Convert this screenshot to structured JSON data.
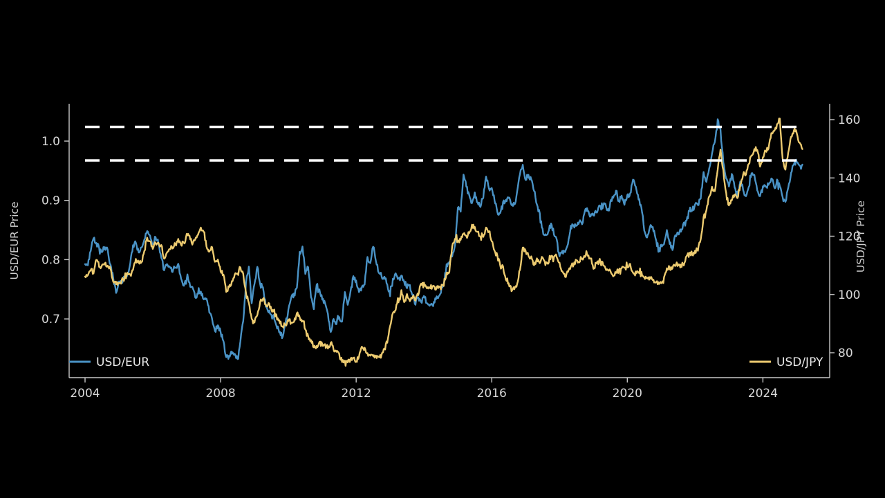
{
  "figure": {
    "background": "#000000",
    "spine_color": "#c8c8c8",
    "tick_label_color": "#d9d9d9",
    "axis_title_color": "#cfcfcf",
    "legend_text_color": "#e9e9e9"
  },
  "chart_data": {
    "type": "line",
    "title": "",
    "x_axis": {
      "label": "",
      "ticks": [
        2004,
        2008,
        2012,
        2016,
        2020,
        2024
      ],
      "tick_labels": [
        "2004",
        "2008",
        "2012",
        "2016",
        "2020",
        "2024"
      ],
      "range": [
        2003.5,
        2026.0
      ]
    },
    "y_axis_left": {
      "label": "USD/EUR Price",
      "ticks": [
        0.7,
        0.8,
        0.9,
        1.0
      ],
      "tick_labels": [
        "0.7",
        "0.8",
        "0.9",
        "1.0"
      ],
      "range": [
        0.6,
        1.06
      ]
    },
    "y_axis_right": {
      "label": "USD/JPY Price",
      "ticks": [
        80,
        100,
        120,
        140,
        160
      ],
      "tick_labels": [
        "80",
        "100",
        "120",
        "140",
        "160"
      ],
      "range": [
        71.5,
        165.5
      ]
    },
    "reference_lines": [
      {
        "axis": "right",
        "value": 157.5,
        "style": "dashed",
        "color": "#ffffff"
      },
      {
        "axis": "right",
        "value": 146.0,
        "style": "dashed",
        "color": "#ffffff"
      }
    ],
    "legend": [
      {
        "label": "USD/EUR",
        "position": "lower-left",
        "color": "#4A93C6"
      },
      {
        "label": "USD/JPY",
        "position": "lower-right",
        "color": "#EDCB70"
      }
    ],
    "series": [
      {
        "name": "USD/EUR",
        "axis": "left",
        "color": "#4A93C6",
        "start_year": 2004.0,
        "interval_years": 0.08333,
        "values": [
          0.792,
          0.79,
          0.816,
          0.838,
          0.828,
          0.82,
          0.814,
          0.822,
          0.815,
          0.792,
          0.768,
          0.742,
          0.764,
          0.76,
          0.772,
          0.775,
          0.793,
          0.825,
          0.828,
          0.813,
          0.822,
          0.833,
          0.848,
          0.842,
          0.826,
          0.838,
          0.828,
          0.803,
          0.782,
          0.791,
          0.786,
          0.781,
          0.788,
          0.792,
          0.768,
          0.757,
          0.769,
          0.76,
          0.752,
          0.738,
          0.742,
          0.746,
          0.731,
          0.734,
          0.712,
          0.698,
          0.679,
          0.688,
          0.678,
          0.662,
          0.636,
          0.637,
          0.643,
          0.641,
          0.634,
          0.662,
          0.697,
          0.762,
          0.788,
          0.726,
          0.757,
          0.789,
          0.757,
          0.753,
          0.722,
          0.713,
          0.706,
          0.699,
          0.686,
          0.676,
          0.67,
          0.692,
          0.716,
          0.734,
          0.741,
          0.751,
          0.812,
          0.82,
          0.777,
          0.788,
          0.736,
          0.718,
          0.757,
          0.752,
          0.733,
          0.726,
          0.708,
          0.676,
          0.699,
          0.692,
          0.701,
          0.696,
          0.746,
          0.722,
          0.746,
          0.773,
          0.764,
          0.746,
          0.752,
          0.757,
          0.806,
          0.792,
          0.823,
          0.798,
          0.778,
          0.772,
          0.771,
          0.757,
          0.74,
          0.766,
          0.779,
          0.766,
          0.771,
          0.764,
          0.754,
          0.756,
          0.741,
          0.726,
          0.737,
          0.728,
          0.74,
          0.726,
          0.724,
          0.722,
          0.733,
          0.736,
          0.746,
          0.761,
          0.791,
          0.796,
          0.806,
          0.824,
          0.886,
          0.883,
          0.945,
          0.924,
          0.908,
          0.894,
          0.912,
          0.895,
          0.891,
          0.906,
          0.941,
          0.919,
          0.921,
          0.901,
          0.881,
          0.878,
          0.896,
          0.901,
          0.904,
          0.894,
          0.891,
          0.913,
          0.944,
          0.959,
          0.936,
          0.942,
          0.934,
          0.917,
          0.891,
          0.877,
          0.851,
          0.841,
          0.846,
          0.861,
          0.844,
          0.836,
          0.806,
          0.813,
          0.812,
          0.828,
          0.856,
          0.858,
          0.856,
          0.863,
          0.861,
          0.882,
          0.884,
          0.874,
          0.874,
          0.881,
          0.889,
          0.894,
          0.896,
          0.881,
          0.897,
          0.906,
          0.916,
          0.898,
          0.907,
          0.894,
          0.907,
          0.912,
          0.934,
          0.922,
          0.901,
          0.889,
          0.849,
          0.839,
          0.854,
          0.856,
          0.837,
          0.814,
          0.824,
          0.828,
          0.851,
          0.828,
          0.818,
          0.842,
          0.845,
          0.848,
          0.862,
          0.864,
          0.884,
          0.884,
          0.892,
          0.891,
          0.905,
          0.947,
          0.933,
          0.956,
          0.98,
          0.998,
          1.035,
          1.018,
          0.963,
          0.938,
          0.922,
          0.944,
          0.923,
          0.908,
          0.931,
          0.918,
          0.906,
          0.922,
          0.946,
          0.944,
          0.916,
          0.906,
          0.922,
          0.924,
          0.925,
          0.935,
          0.922,
          0.933,
          0.922,
          0.904,
          0.898,
          0.921,
          0.948,
          0.961,
          0.966,
          0.958,
          0.962
        ]
      },
      {
        "name": "USD/JPY",
        "axis": "right",
        "color": "#EDCB70",
        "start_year": 2004.0,
        "interval_years": 0.08333,
        "values": [
          106.4,
          106.6,
          108.6,
          107.5,
          112.2,
          109.4,
          110.2,
          110.3,
          110.1,
          108.9,
          104.6,
          103.8,
          103.4,
          104.9,
          105.3,
          107.3,
          106.6,
          108.7,
          111.9,
          110.7,
          111.1,
          114.9,
          119.2,
          118.4,
          115.5,
          117.9,
          117.3,
          117.1,
          111.9,
          114.6,
          115.7,
          116.0,
          117.2,
          118.7,
          117.4,
          117.3,
          120.4,
          120.5,
          117.3,
          118.9,
          120.8,
          122.7,
          121.7,
          116.8,
          115.1,
          115.9,
          111.3,
          112.4,
          107.7,
          107.2,
          100.9,
          102.6,
          104.2,
          107.0,
          106.9,
          109.4,
          106.8,
          100.2,
          96.9,
          91.3,
          90.4,
          92.6,
          97.9,
          98.9,
          96.5,
          96.7,
          94.6,
          94.9,
          91.5,
          90.4,
          89.2,
          89.6,
          91.2,
          90.4,
          90.7,
          93.5,
          91.9,
          91.0,
          87.6,
          85.5,
          84.5,
          81.9,
          82.5,
          83.4,
          82.7,
          82.6,
          81.8,
          83.4,
          81.3,
          80.6,
          79.5,
          77.2,
          76.9,
          76.8,
          77.6,
          77.9,
          76.9,
          78.6,
          82.5,
          81.5,
          79.8,
          79.4,
          79.1,
          78.8,
          78.3,
          79.0,
          81.1,
          83.7,
          89.3,
          93.2,
          94.9,
          97.7,
          101.1,
          97.4,
          99.8,
          97.9,
          99.3,
          97.9,
          100.1,
          103.6,
          104.0,
          102.2,
          102.4,
          102.6,
          101.9,
          102.2,
          101.9,
          103.0,
          107.3,
          108.1,
          116.3,
          119.5,
          118.4,
          118.7,
          120.5,
          119.7,
          121.1,
          123.8,
          123.3,
          121.5,
          120.3,
          120.1,
          122.7,
          121.9,
          118.3,
          115.1,
          113.1,
          109.8,
          109.3,
          105.5,
          104.2,
          101.4,
          101.8,
          103.9,
          108.4,
          116.4,
          114.8,
          113.0,
          113.1,
          110.2,
          112.3,
          111.0,
          112.6,
          110.0,
          110.8,
          113.0,
          113.0,
          113.0,
          110.8,
          108.0,
          106.1,
          107.6,
          109.8,
          110.1,
          111.5,
          111.2,
          112.0,
          112.9,
          113.5,
          112.5,
          109.1,
          110.5,
          111.3,
          111.7,
          109.9,
          108.2,
          108.3,
          106.4,
          107.5,
          108.2,
          109.0,
          109.1,
          109.4,
          110.1,
          107.8,
          107.9,
          107.3,
          107.7,
          106.1,
          106.1,
          105.7,
          105.0,
          104.4,
          103.9,
          103.9,
          105.5,
          108.9,
          109.2,
          109.3,
          110.2,
          110.4,
          109.9,
          110.3,
          113.2,
          114.1,
          114.0,
          114.9,
          115.3,
          118.8,
          126.4,
          128.8,
          134.0,
          136.7,
          135.3,
          143.2,
          149.5,
          142.4,
          135.0,
          130.4,
          132.7,
          134.0,
          133.4,
          137.5,
          141.4,
          141.3,
          144.8,
          147.7,
          149.7,
          150.0,
          144.2,
          146.7,
          149.5,
          150.1,
          155.0,
          156.0,
          158.0,
          160.5,
          146.4,
          143.0,
          149.2,
          154.1,
          156.5,
          155.6,
          152.1,
          150.3
        ]
      }
    ]
  }
}
